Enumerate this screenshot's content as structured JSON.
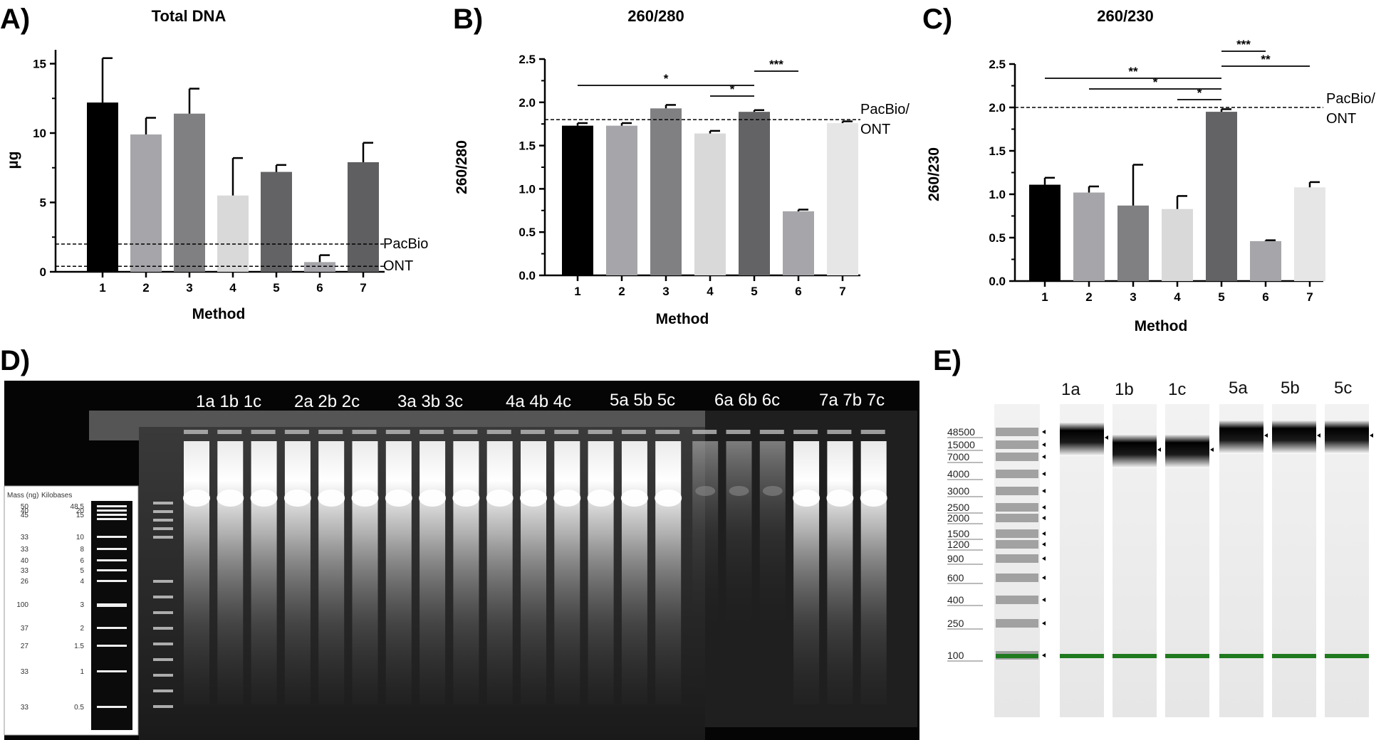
{
  "panel_letters": [
    "A)",
    "B)",
    "C)",
    "D)",
    "E)"
  ],
  "chart_data": [
    {
      "type": "bar",
      "title": "Total DNA",
      "xlabel": "Method",
      "ylabel": "µg",
      "categories": [
        "1",
        "2",
        "3",
        "4",
        "5",
        "6",
        "7"
      ],
      "values": [
        12.2,
        9.9,
        11.4,
        5.5,
        7.2,
        0.7,
        7.9
      ],
      "errors": [
        3.2,
        1.2,
        1.8,
        2.7,
        0.5,
        0.5,
        1.4
      ],
      "ylim": [
        0,
        16
      ],
      "yticks": [
        "0",
        "5",
        "10",
        "15"
      ],
      "reference_lines": [
        {
          "label": "PacBio",
          "value": 2.0
        },
        {
          "label": "ONT",
          "value": 0.4
        }
      ],
      "colors": [
        "#000000",
        "#a6a6aa",
        "#808083",
        "#d9d9d9",
        "#636366",
        "#a6a6aa",
        "#5f5f62"
      ]
    },
    {
      "type": "bar",
      "title": "260/280",
      "xlabel": "Method",
      "ylabel": "260/280",
      "categories": [
        "1",
        "2",
        "3",
        "4",
        "5",
        "6",
        "7"
      ],
      "values": [
        1.73,
        1.73,
        1.93,
        1.64,
        1.89,
        0.74,
        1.76
      ],
      "errors": [
        0.03,
        0.03,
        0.04,
        0.03,
        0.02,
        0.02,
        0.02
      ],
      "ylim": [
        0,
        2.5
      ],
      "yticks": [
        "0.0",
        "0.5",
        "1.0",
        "1.5",
        "2.0",
        "2.5"
      ],
      "reference_lines": [
        {
          "label": "PacBio/ ONT",
          "value": 1.8
        }
      ],
      "significance": [
        {
          "from": "1",
          "to": "5",
          "label": "*"
        },
        {
          "from": "4",
          "to": "5",
          "label": "*"
        },
        {
          "from": "5",
          "to": "6",
          "label": "***"
        }
      ],
      "colors": [
        "#000000",
        "#a6a6aa",
        "#808083",
        "#d9d9d9",
        "#636366",
        "#a6a6aa",
        "#e6e6e6"
      ]
    },
    {
      "type": "bar",
      "title": "260/230",
      "xlabel": "Method",
      "ylabel": "260/230",
      "categories": [
        "1",
        "2",
        "3",
        "4",
        "5",
        "6",
        "7"
      ],
      "values": [
        1.11,
        1.02,
        0.87,
        0.83,
        1.95,
        0.46,
        1.08
      ],
      "errors": [
        0.08,
        0.07,
        0.47,
        0.15,
        0.03,
        0.01,
        0.06
      ],
      "ylim": [
        0,
        2.5
      ],
      "yticks": [
        "0.0",
        "0.5",
        "1.0",
        "1.5",
        "2.0",
        "2.5"
      ],
      "reference_lines": [
        {
          "label": "PacBio/ ONT",
          "value": 2.0
        }
      ],
      "significance": [
        {
          "from": "1",
          "to": "5",
          "label": "**"
        },
        {
          "from": "2",
          "to": "5",
          "label": "*"
        },
        {
          "from": "4",
          "to": "5",
          "label": "*"
        },
        {
          "from": "5",
          "to": "6",
          "label": "***"
        },
        {
          "from": "5",
          "to": "7",
          "label": "**"
        }
      ],
      "colors": [
        "#000000",
        "#a6a6aa",
        "#808083",
        "#d9d9d9",
        "#636366",
        "#a6a6aa",
        "#e6e6e6"
      ]
    }
  ],
  "gel": {
    "lane_labels": [
      "1a 1b 1c",
      "2a 2b 2c",
      "3a 3b 3c",
      "4a 4b 4c",
      "5a 5b 5c",
      "6a 6b 6c",
      "7a 7b 7c"
    ],
    "ladder_legend": {
      "header_mass": "Mass (ng)",
      "header_kb": "Kilobases",
      "masses": [
        "50",
        "40",
        "45",
        "",
        "33",
        "33",
        "40",
        "33",
        "26",
        "100",
        "37",
        "27",
        "33",
        "33"
      ],
      "kilobases": [
        "48.5",
        "20",
        "15",
        "",
        "10",
        "8",
        "6",
        "5",
        "4",
        "3",
        "2",
        "1.5",
        "1",
        "0.5"
      ]
    }
  },
  "tapestation": {
    "lane_labels": [
      "1a",
      "1b",
      "1c",
      "5a",
      "5b",
      "5c"
    ],
    "size_labels": [
      "48500",
      "15000",
      "7000",
      "4000",
      "3000",
      "2500",
      "2000",
      "1500",
      "1200",
      "900",
      "600",
      "400",
      "250",
      "100"
    ]
  }
}
